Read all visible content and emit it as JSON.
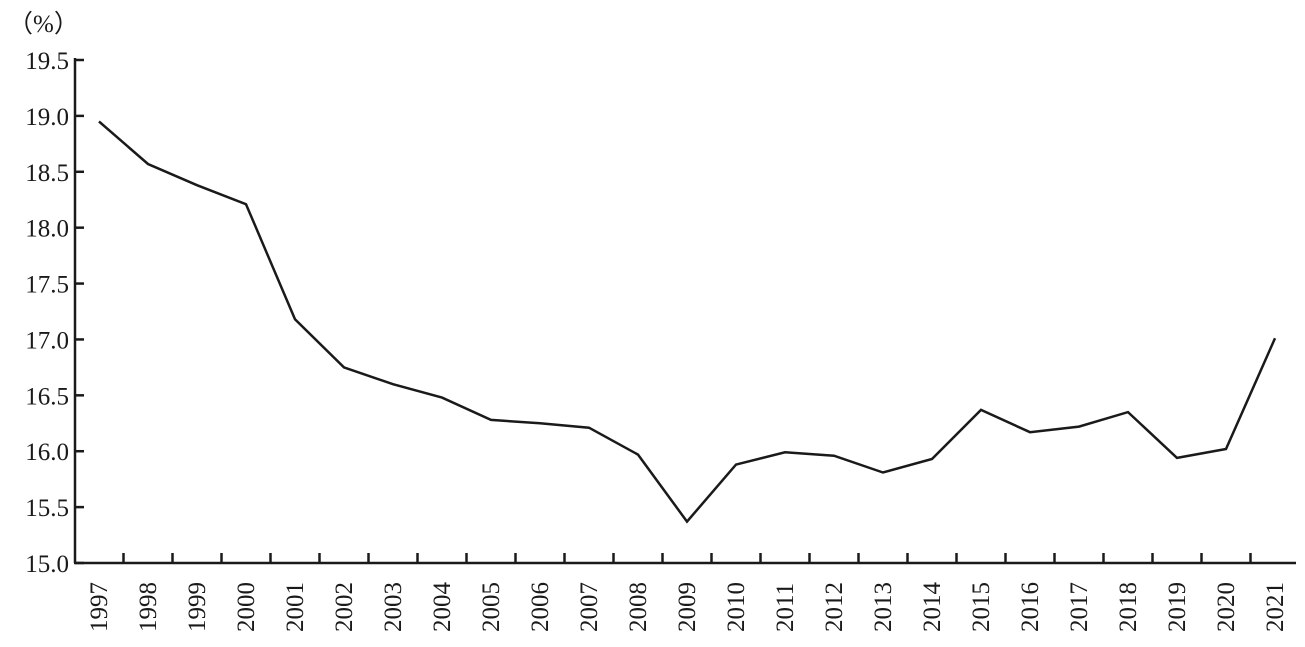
{
  "chart_data": {
    "type": "line",
    "title": "",
    "xlabel": "",
    "ylabel": "",
    "unit": "（%）",
    "x": [
      "1997",
      "1998",
      "1999",
      "2000",
      "2001",
      "2002",
      "2003",
      "2004",
      "2005",
      "2006",
      "2007",
      "2008",
      "2009",
      "2010",
      "2011",
      "2012",
      "2013",
      "2014",
      "2015",
      "2016",
      "2017",
      "2018",
      "2019",
      "2020",
      "2021"
    ],
    "series": [
      {
        "values": [
          18.95,
          18.57,
          18.38,
          18.21,
          17.18,
          16.75,
          16.6,
          16.48,
          16.28,
          16.25,
          16.21,
          15.97,
          15.37,
          15.88,
          15.99,
          15.96,
          15.81,
          15.93,
          16.37,
          16.17,
          16.22,
          16.35,
          15.94,
          16.02,
          17.01
        ],
        "color": "#1a1a1a"
      }
    ],
    "yticks": [
      "15.0",
      "15.5",
      "16.0",
      "16.5",
      "17.0",
      "17.5",
      "18.0",
      "18.5",
      "19.0",
      "19.5"
    ],
    "ylim": [
      15.0,
      19.5
    ],
    "grid": false,
    "legend": "none"
  }
}
